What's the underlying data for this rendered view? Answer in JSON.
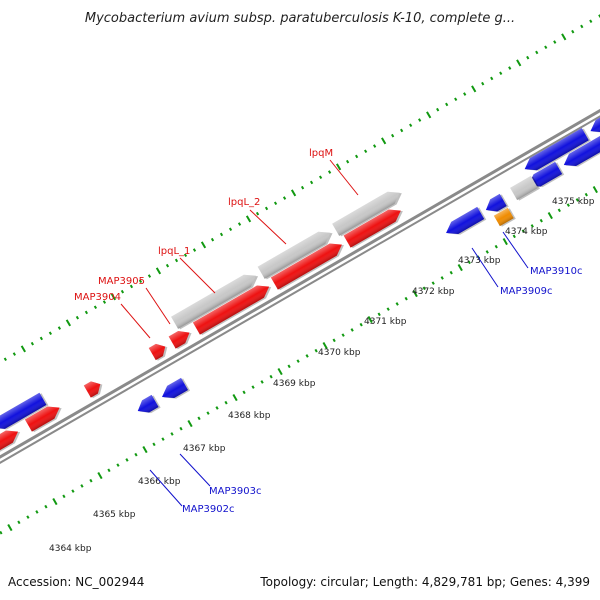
{
  "title": "Mycobacterium avium subsp. paratuberculosis K-10, complete g...",
  "footer": {
    "accession": "Accession: NC_002944",
    "summary": "Topology: circular; Length: 4,829,781 bp; Genes: 4,399"
  },
  "colors": {
    "forward_gene": "#ee1111",
    "reverse_gene": "#1111dd",
    "pseudo_gene": "#c8c8c8",
    "rna_gene": "#f08c00",
    "other_gene": "#4477aa",
    "forward_label": "#dd1111",
    "reverse_label": "#1111cc",
    "backbone": "#8a8a8a",
    "tick": "#119911"
  },
  "scale": {
    "ticks": [
      "4364 kbp",
      "4365 kbp",
      "4366 kbp",
      "4367 kbp",
      "4368 kbp",
      "4369 kbp",
      "4370 kbp",
      "4371 kbp",
      "4372 kbp",
      "4373 kbp",
      "4374 kbp",
      "4375 kbp"
    ]
  },
  "labels": {
    "forward": [
      "lpqM",
      "lpqL_2",
      "lpqL_1",
      "MAP3905",
      "MAP3904"
    ],
    "reverse": [
      "MAP3903c",
      "MAP3902c",
      "MAP3909c",
      "MAP3910c"
    ]
  }
}
